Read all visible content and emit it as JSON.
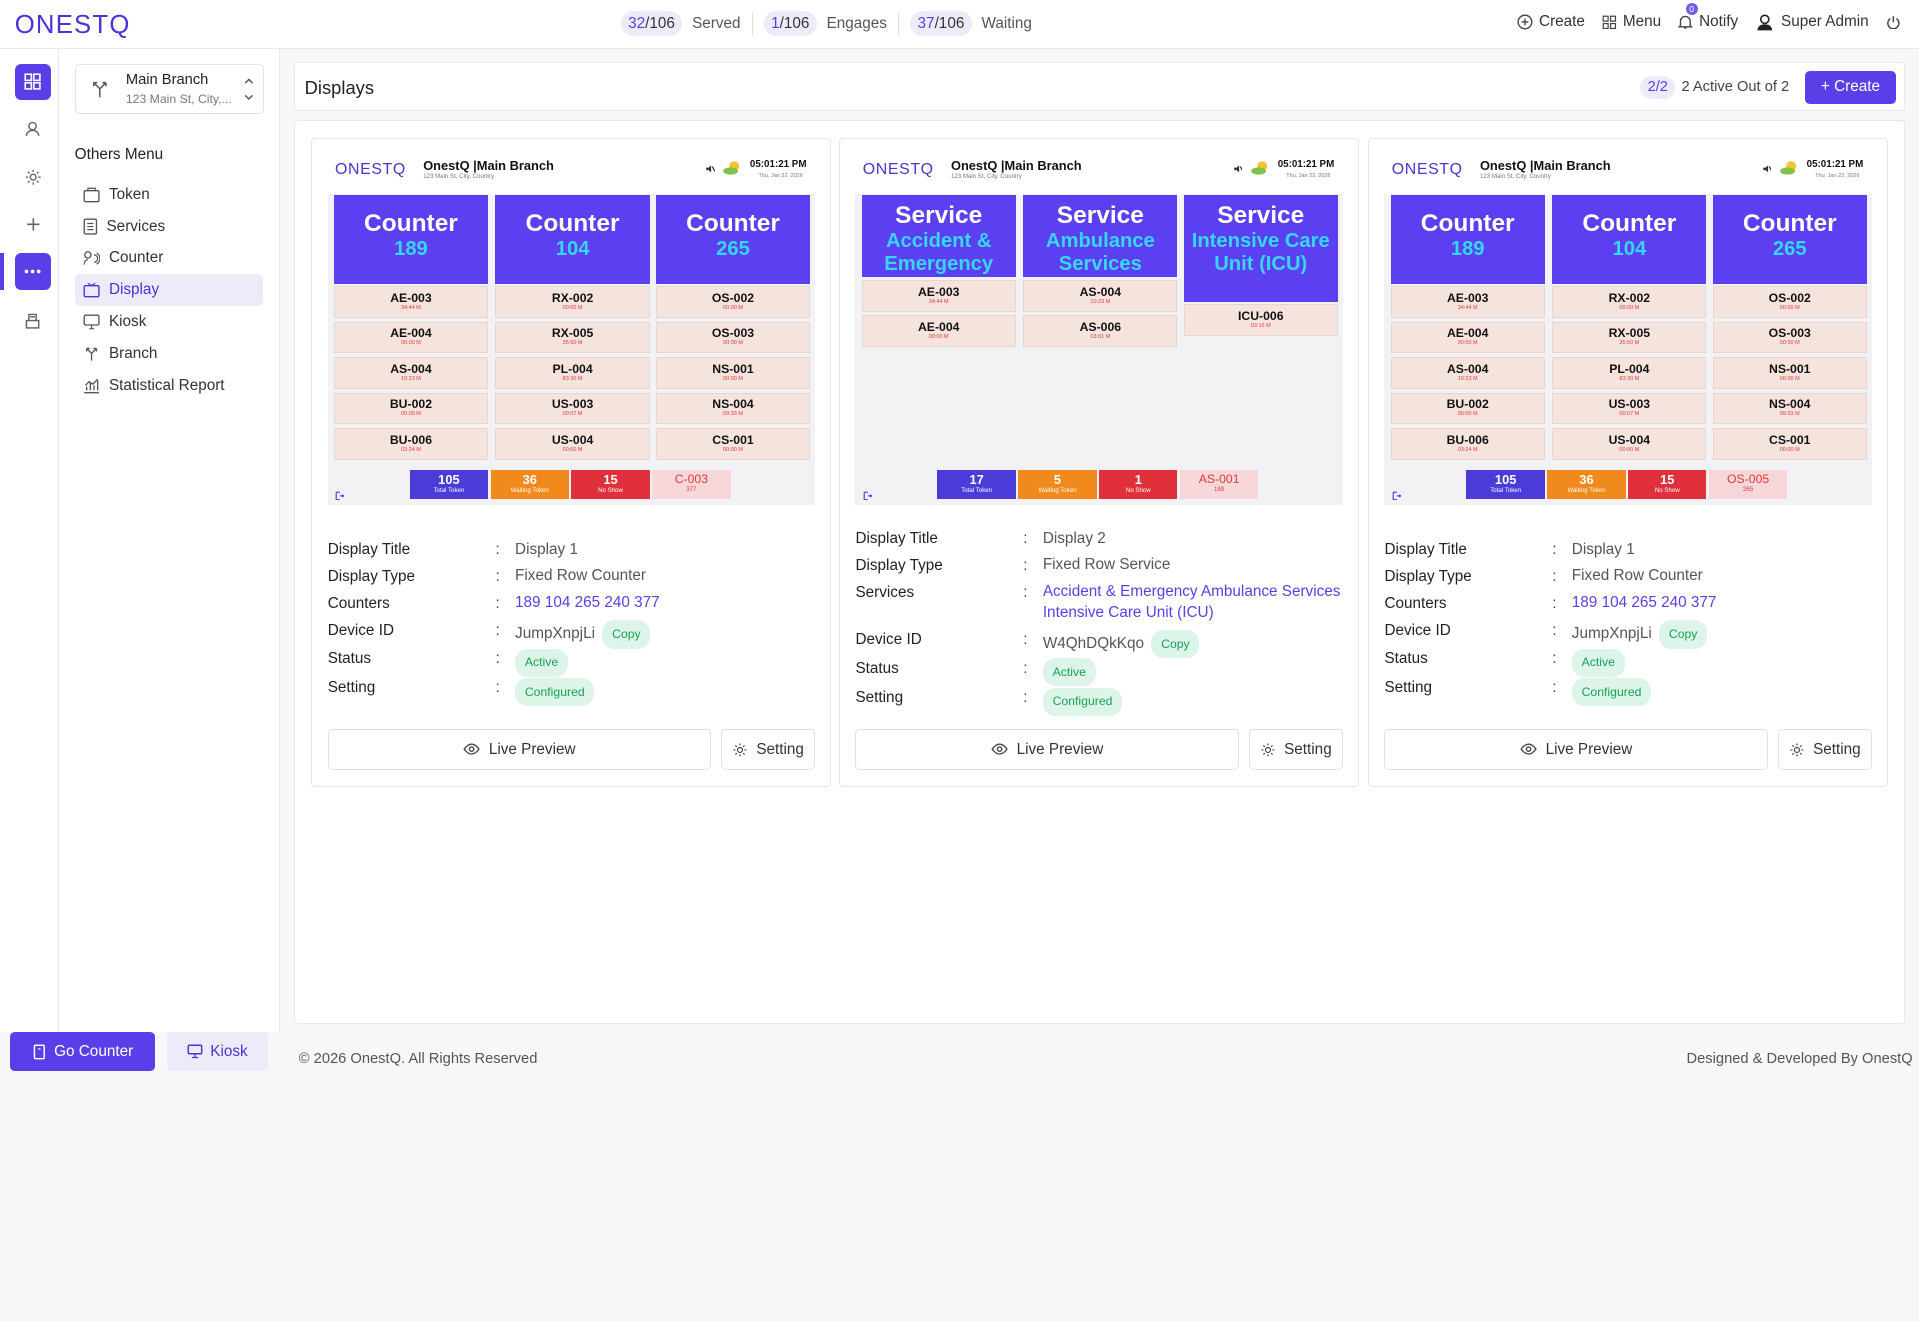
{
  "app": {
    "logo": "ONESTQ"
  },
  "header": {
    "stats": [
      {
        "value": "32",
        "total": "/106",
        "label": "Served"
      },
      {
        "value": "1",
        "total": "/106",
        "label": "Engages"
      },
      {
        "value": "37",
        "total": "/106",
        "label": "Waiting"
      }
    ],
    "create_label": "Create",
    "menu_label": "Menu",
    "notify_label": "Notify",
    "notify_count": "0",
    "user_name": "Super Admin"
  },
  "sidebar": {
    "branch_name": "Main Branch",
    "branch_address": "123 Main St, City,...",
    "section_title": "Others Menu",
    "items": [
      {
        "label": "Token",
        "icon": "token-icon"
      },
      {
        "label": "Services",
        "icon": "services-icon"
      },
      {
        "label": "Counter",
        "icon": "counter-icon"
      },
      {
        "label": "Display",
        "icon": "display-icon",
        "selected": true
      },
      {
        "label": "Kiosk",
        "icon": "kiosk-icon"
      },
      {
        "label": "Branch",
        "icon": "branch-icon"
      },
      {
        "label": "Statistical Report",
        "icon": "report-icon"
      }
    ]
  },
  "page": {
    "title": "Displays",
    "active_count": "2/2",
    "active_text": "2 Active Out of 2",
    "create_label": "+ Create"
  },
  "cards": [
    {
      "preview": {
        "logo": "ONESTQ",
        "branch": "OnestQ |Main Branch",
        "address": "123 Main St, City, Country",
        "time": "05:01:21 PM",
        "date": "Thu, Jan 22, 2026",
        "columns": [
          {
            "title": "Counter",
            "sub": "189",
            "tokens": [
              {
                "n": "AE-003",
                "t": "34:44 M"
              },
              {
                "n": "AE-004",
                "t": "00:00 M"
              },
              {
                "n": "AS-004",
                "t": "10:23 M"
              },
              {
                "n": "BU-002",
                "t": "00:00 M"
              },
              {
                "n": "BU-006",
                "t": "03:24 M"
              }
            ]
          },
          {
            "title": "Counter",
            "sub": "104",
            "tokens": [
              {
                "n": "RX-002",
                "t": "00:00 M"
              },
              {
                "n": "RX-005",
                "t": "35:50 M"
              },
              {
                "n": "PL-004",
                "t": "83:30 M"
              },
              {
                "n": "US-003",
                "t": "00:07 M"
              },
              {
                "n": "US-004",
                "t": "00:00 M"
              }
            ]
          },
          {
            "title": "Counter",
            "sub": "265",
            "tokens": [
              {
                "n": "OS-002",
                "t": "00:00 M"
              },
              {
                "n": "OS-003",
                "t": "00:00 M"
              },
              {
                "n": "NS-001",
                "t": "00:00 M"
              },
              {
                "n": "NS-004",
                "t": "09:33 M"
              },
              {
                "n": "CS-001",
                "t": "00:00 M"
              }
            ]
          }
        ],
        "stats": [
          {
            "n": "105",
            "l": "Total Token",
            "color": "#4b3bd9"
          },
          {
            "n": "36",
            "l": "Waiting Token",
            "color": "#f08a1c"
          },
          {
            "n": "15",
            "l": "No Show",
            "color": "#e0303c"
          },
          {
            "n": "C-003",
            "l": "377",
            "color": "#f8d7da"
          }
        ]
      },
      "info": {
        "title_label": "Display Title",
        "title_value": "Display 1",
        "type_label": "Display Type",
        "type_value": "Fixed Row Counter",
        "third_label": "Counters",
        "third_value": "189 104 265 240 377",
        "device_label": "Device ID",
        "device_value": "JumpXnpjLi",
        "copy_label": "Copy",
        "status_label": "Status",
        "status_value": "Active",
        "setting_label": "Setting",
        "setting_value": "Configured"
      },
      "live_preview_label": "Live Preview",
      "setting_btn_label": "Setting"
    },
    {
      "preview": {
        "logo": "ONESTQ",
        "branch": "OnestQ |Main Branch",
        "address": "123 Main St, City, Country",
        "time": "05:01:21 PM",
        "date": "Thu, Jan 22, 2026",
        "columns": [
          {
            "title": "Service",
            "sub": "Accident & Emergency",
            "tokens": [
              {
                "n": "AE-003",
                "t": "34:44 M"
              },
              {
                "n": "AE-004",
                "t": "00:00 M"
              }
            ]
          },
          {
            "title": "Service",
            "sub": "Ambulance Services",
            "tokens": [
              {
                "n": "AS-004",
                "t": "10:23 M"
              },
              {
                "n": "AS-006",
                "t": "03:01 M"
              }
            ]
          },
          {
            "title": "Service",
            "sub": "Intensive Care Unit (ICU)",
            "tokens": [
              {
                "n": "ICU-006",
                "t": "03:16 M"
              }
            ]
          }
        ],
        "stats": [
          {
            "n": "17",
            "l": "Total Token",
            "color": "#4b3bd9"
          },
          {
            "n": "5",
            "l": "Waiting Token",
            "color": "#f08a1c"
          },
          {
            "n": "1",
            "l": "No Show",
            "color": "#e0303c"
          },
          {
            "n": "AS-001",
            "l": "189",
            "color": "#f8d7da"
          }
        ]
      },
      "info": {
        "title_label": "Display Title",
        "title_value": "Display 2",
        "type_label": "Display Type",
        "type_value": "Fixed Row Service",
        "third_label": "Services",
        "third_value": "Accident & Emergency Ambulance Services Intensive Care Unit (ICU)",
        "device_label": "Device ID",
        "device_value": "W4QhDQkKqo",
        "copy_label": "Copy",
        "status_label": "Status",
        "status_value": "Active",
        "setting_label": "Setting",
        "setting_value": "Configured"
      },
      "live_preview_label": "Live Preview",
      "setting_btn_label": "Setting"
    },
    {
      "preview": {
        "logo": "ONESTQ",
        "branch": "OnestQ |Main Branch",
        "address": "123 Main St, City, Country",
        "time": "05:01:21 PM",
        "date": "Thu, Jan 22, 2026",
        "columns": [
          {
            "title": "Counter",
            "sub": "189",
            "tokens": [
              {
                "n": "AE-003",
                "t": "34:44 M"
              },
              {
                "n": "AE-004",
                "t": "00:00 M"
              },
              {
                "n": "AS-004",
                "t": "10:23 M"
              },
              {
                "n": "BU-002",
                "t": "00:00 M"
              },
              {
                "n": "BU-006",
                "t": "03:24 M"
              }
            ]
          },
          {
            "title": "Counter",
            "sub": "104",
            "tokens": [
              {
                "n": "RX-002",
                "t": "00:00 M"
              },
              {
                "n": "RX-005",
                "t": "35:50 M"
              },
              {
                "n": "PL-004",
                "t": "83:30 M"
              },
              {
                "n": "US-003",
                "t": "00:07 M"
              },
              {
                "n": "US-004",
                "t": "00:00 M"
              }
            ]
          },
          {
            "title": "Counter",
            "sub": "265",
            "tokens": [
              {
                "n": "OS-002",
                "t": "00:00 M"
              },
              {
                "n": "OS-003",
                "t": "00:00 M"
              },
              {
                "n": "NS-001",
                "t": "00:00 M"
              },
              {
                "n": "NS-004",
                "t": "09:33 M"
              },
              {
                "n": "CS-001",
                "t": "00:00 M"
              }
            ]
          }
        ],
        "stats": [
          {
            "n": "105",
            "l": "Total Token",
            "color": "#4b3bd9"
          },
          {
            "n": "36",
            "l": "Waiting Token",
            "color": "#f08a1c"
          },
          {
            "n": "15",
            "l": "No Show",
            "color": "#e0303c"
          },
          {
            "n": "OS-005",
            "l": "265",
            "color": "#f8d7da"
          }
        ]
      },
      "info": {
        "title_label": "Display Title",
        "title_value": "Display 1",
        "type_label": "Display Type",
        "type_value": "Fixed Row Counter",
        "third_label": "Counters",
        "third_value": "189 104 265 240 377",
        "device_label": "Device ID",
        "device_value": "JumpXnpjLi",
        "copy_label": "Copy",
        "status_label": "Status",
        "status_value": "Active",
        "setting_label": "Setting",
        "setting_value": "Configured"
      },
      "live_preview_label": "Live Preview",
      "setting_btn_label": "Setting"
    }
  ],
  "bottom": {
    "go_counter_label": "Go Counter",
    "kiosk_label": "Kiosk"
  },
  "footer": {
    "copyright": "© 2026 OnestQ. All Rights Reserved",
    "designed": "Designed & Developed By OnestQ"
  },
  "colors": {
    "accent": "#5a3ee8",
    "counter_head": "#5b3ff0",
    "counter_sub": "#35d7f2",
    "active_chip": "#18a058"
  }
}
